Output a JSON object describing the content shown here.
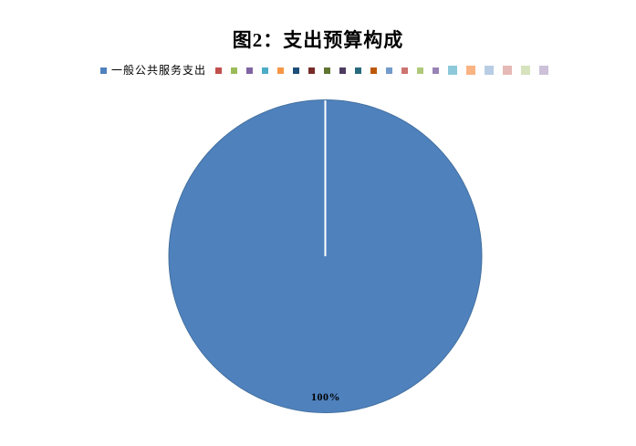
{
  "chart_data": {
    "type": "pie",
    "title": "图2：支出预算构成",
    "series": [
      {
        "name": "一般公共服务支出",
        "value": 100,
        "unit": "percent",
        "percent_label": "100%",
        "color": "#4F81BD"
      }
    ],
    "pie_style": {
      "start_angle_deg": 0,
      "slice_divider_color": "#FFFFFF",
      "outline_color": "#44719F",
      "data_label_color": "#000000"
    },
    "legend": {
      "position": "top",
      "entries": [
        {
          "label": "一般公共服务支出",
          "color": "#4F81BD",
          "variant": "small"
        },
        {
          "label": "",
          "color": "#C0504D",
          "variant": "small"
        },
        {
          "label": "",
          "color": "#9BBB59",
          "variant": "small"
        },
        {
          "label": "",
          "color": "#8064A2",
          "variant": "small"
        },
        {
          "label": "",
          "color": "#4BACC6",
          "variant": "small"
        },
        {
          "label": "",
          "color": "#F79646",
          "variant": "small"
        },
        {
          "label": "",
          "color": "#1F4E78",
          "variant": "small"
        },
        {
          "label": "",
          "color": "#772C2A",
          "variant": "small"
        },
        {
          "label": "",
          "color": "#5F7530",
          "variant": "small"
        },
        {
          "label": "",
          "color": "#4D3B62",
          "variant": "small"
        },
        {
          "label": "",
          "color": "#276A7D",
          "variant": "small"
        },
        {
          "label": "",
          "color": "#BC5909",
          "variant": "small"
        },
        {
          "label": "",
          "color": "#729ACA",
          "variant": "small"
        },
        {
          "label": "",
          "color": "#CD7371",
          "variant": "small"
        },
        {
          "label": "",
          "color": "#AFC97A",
          "variant": "small"
        },
        {
          "label": "",
          "color": "#9983B5",
          "variant": "small"
        },
        {
          "label": "",
          "color": "#8DC9DA",
          "variant": "large"
        },
        {
          "label": "",
          "color": "#FAB382",
          "variant": "large"
        },
        {
          "label": "",
          "color": "#B8CCE4",
          "variant": "large"
        },
        {
          "label": "",
          "color": "#E5B9B7",
          "variant": "large"
        },
        {
          "label": "",
          "color": "#D6E3BC",
          "variant": "large"
        },
        {
          "label": "",
          "color": "#CCC1D9",
          "variant": "large"
        }
      ]
    }
  }
}
